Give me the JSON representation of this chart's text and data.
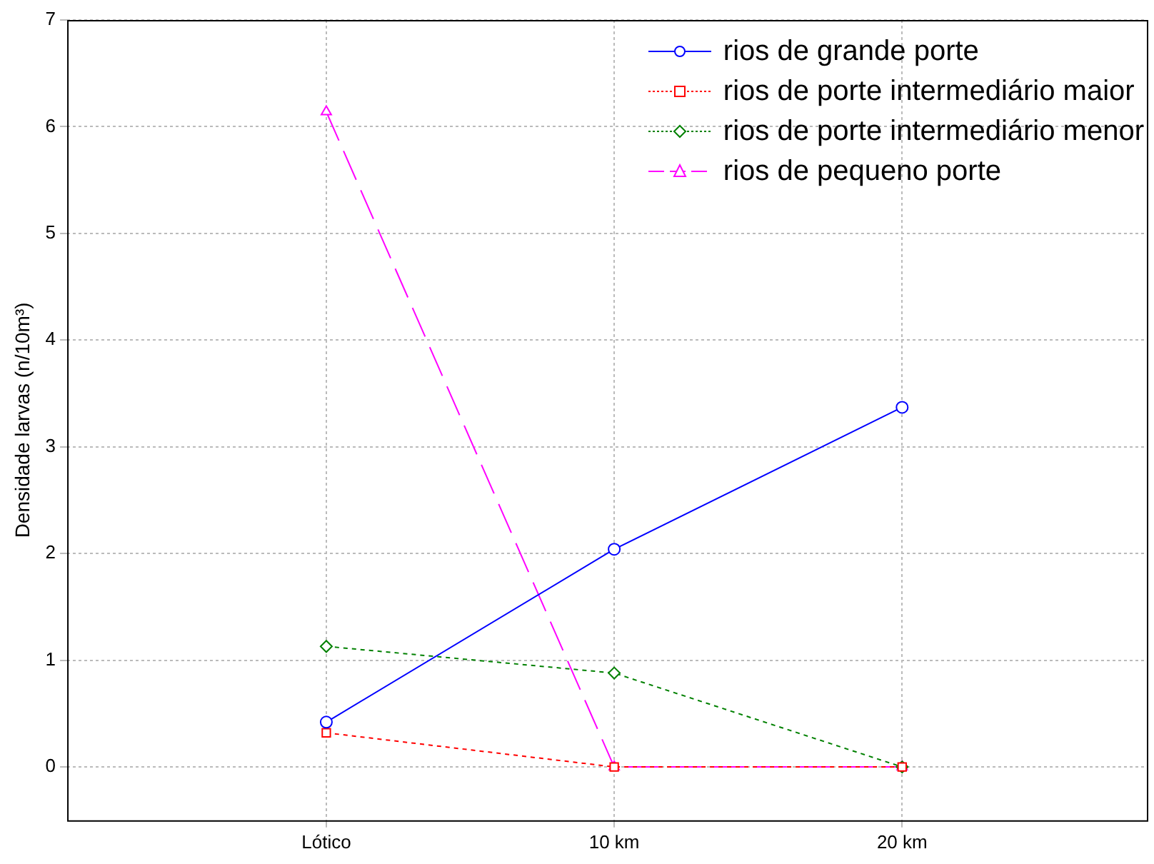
{
  "chart_data": {
    "type": "line",
    "ylabel": "Densidade larvas (n/10m³)",
    "categories": [
      "Lótico",
      "10 km",
      "20 km"
    ],
    "series": [
      {
        "name": "rios de grande porte",
        "color": "#0000ff",
        "values": [
          0.42,
          2.04,
          3.37
        ],
        "marker": "circle",
        "line_style": "solid"
      },
      {
        "name": "rios de porte intermediário maior",
        "color": "#ff0000",
        "values": [
          0.32,
          0,
          0
        ],
        "marker": "square",
        "line_style": "dotted"
      },
      {
        "name": "rios de porte intermediário menor",
        "color": "#008000",
        "values": [
          1.13,
          0.88,
          0
        ],
        "marker": "diamond",
        "line_style": "dotted"
      },
      {
        "name": "rios de pequeno porte",
        "color": "#ff00ff",
        "values": [
          6.14,
          0,
          0
        ],
        "marker": "triangle",
        "line_style": "dashed"
      }
    ],
    "ylim": [
      -0.5,
      7
    ],
    "yticks": [
      0,
      1,
      2,
      3,
      4,
      5,
      6,
      7
    ],
    "grid": true,
    "legend": "top right"
  }
}
